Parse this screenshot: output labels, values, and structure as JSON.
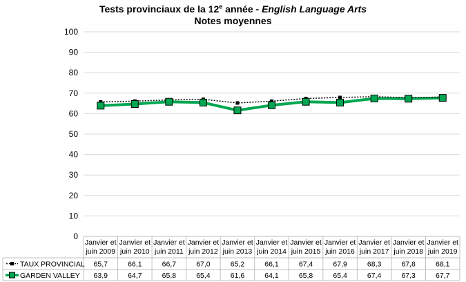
{
  "chart_data": {
    "type": "line",
    "title": {
      "prefix": "Tests provinciaux de la 12",
      "sup": "e",
      "middle": " année - ",
      "italic": "English Language Arts",
      "line2": "Notes moyennes"
    },
    "categories": [
      [
        "Janvier et",
        "juin 2009"
      ],
      [
        "Janvier et",
        "juin 2010"
      ],
      [
        "Janvier et",
        "juin 2011"
      ],
      [
        "Janvier et",
        "juin 2012"
      ],
      [
        "Janvier et",
        "juin 2013"
      ],
      [
        "Janvier et",
        "juin 2014"
      ],
      [
        "Janvier et",
        "juin 2015"
      ],
      [
        "Janvier et",
        "juin 2016"
      ],
      [
        "Janvier et",
        "juin 2017"
      ],
      [
        "Janvier et",
        "juin 2018"
      ],
      [
        "Janvier et",
        "juin 2019"
      ]
    ],
    "yticks": [
      "0",
      "10",
      "20",
      "30",
      "40",
      "50",
      "60",
      "70",
      "80",
      "90",
      "100"
    ],
    "ylim": [
      0,
      100
    ],
    "grid": true,
    "legend": "data-table",
    "series": [
      {
        "name": "TAUX PROVINCIAL",
        "color": "#000000",
        "style": "dotted-square-markers",
        "values": [
          65.7,
          66.1,
          66.7,
          67.0,
          65.2,
          66.1,
          67.4,
          67.9,
          68.3,
          67.8,
          68.1
        ],
        "labels": [
          "65,7",
          "66,1",
          "66,7",
          "67,0",
          "65,2",
          "66,1",
          "67,4",
          "67,9",
          "68,3",
          "67,8",
          "68,1"
        ]
      },
      {
        "name": "GARDEN VALLEY",
        "color": "#00A651",
        "style": "thick-square-markers",
        "values": [
          63.9,
          64.7,
          65.8,
          65.4,
          61.6,
          64.1,
          65.8,
          65.4,
          67.4,
          67.3,
          67.7
        ],
        "labels": [
          "63,9",
          "64,7",
          "65,8",
          "65,4",
          "61,6",
          "64,1",
          "65,8",
          "65,4",
          "67,4",
          "67,3",
          "67,7"
        ]
      }
    ]
  }
}
